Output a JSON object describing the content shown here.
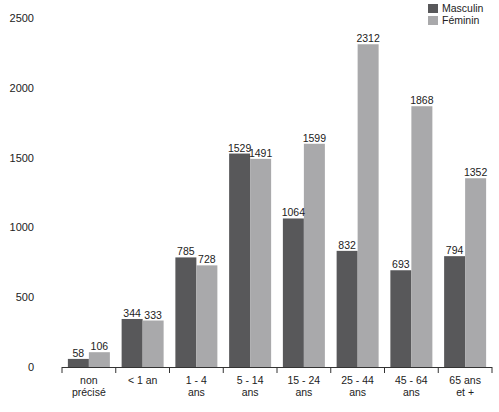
{
  "chart_data": {
    "type": "bar",
    "categories": [
      "non précisé",
      "< 1 an",
      "1 - 4 ans",
      "5 - 14 ans",
      "15 - 24 ans",
      "25 - 44 ans",
      "45 - 64 ans",
      "65 ans et +"
    ],
    "series": [
      {
        "name": "Masculin",
        "color": "#58585a",
        "values": [
          58,
          344,
          785,
          1529,
          1064,
          832,
          693,
          794
        ]
      },
      {
        "name": "Féminin",
        "color": "#a9a9ab",
        "values": [
          106,
          333,
          728,
          1491,
          1599,
          2312,
          1868,
          1352
        ]
      }
    ],
    "ylim": [
      0,
      2500
    ],
    "yticks": [
      0,
      500,
      1000,
      1500,
      2000,
      2500
    ],
    "grid": false,
    "legend": "top right",
    "data_labels": true
  }
}
